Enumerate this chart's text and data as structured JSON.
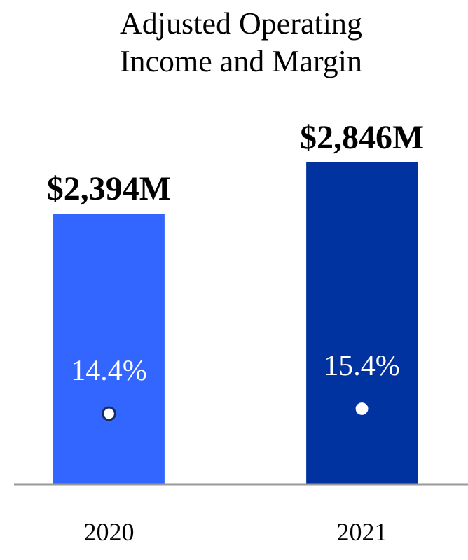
{
  "chart_data": {
    "type": "bar",
    "title": "Adjusted Operating Income and Margin",
    "categories": [
      "2020",
      "2021"
    ],
    "series": [
      {
        "colors": [
          "#3366ff",
          "#0033a0"
        ],
        "values": [
          2394,
          2846
        ],
        "value_labels": [
          "$2,394M",
          "$2,846M"
        ]
      },
      {
        "type": "scatter",
        "axis": "y2",
        "color": "#ffffff",
        "values": [
          14.4,
          15.4
        ],
        "value_labels": [
          "14.4%",
          "15.4%"
        ]
      }
    ],
    "marker": "circle",
    "tick_labels": "x"
  }
}
